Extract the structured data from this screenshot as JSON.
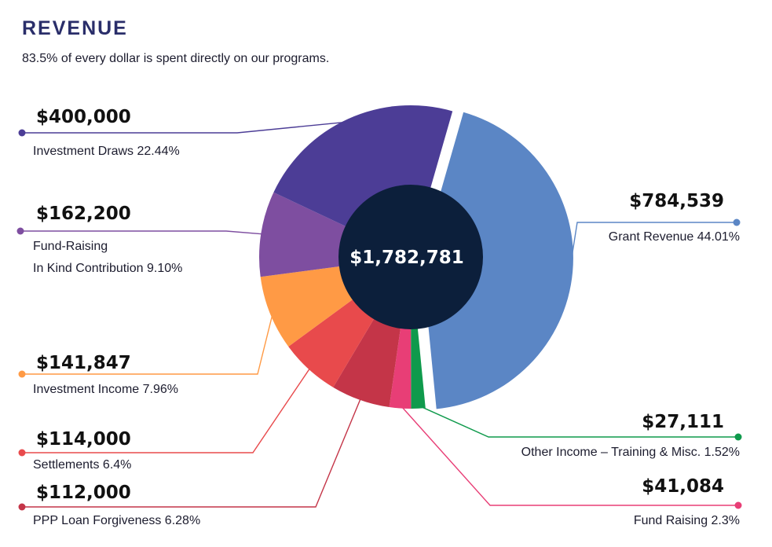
{
  "header": {
    "title": "REVENUE",
    "subtitle": "83.5%  of every dollar is spent directly on our programs."
  },
  "chart_data": {
    "type": "pie",
    "center_label": "$1,782,781",
    "slices": [
      {
        "amount": "$784,539",
        "label": "Grant Revenue 44.01%",
        "percent": 44.01,
        "color": "#5b86c5",
        "exploded": true
      },
      {
        "amount": "$27,111",
        "label": "Other Income – Training & Misc. 1.52%",
        "percent": 1.52,
        "color": "#0f9a4c"
      },
      {
        "amount": "$41,084",
        "label": "Fund Raising 2.3%",
        "percent": 2.3,
        "color": "#e83e76"
      },
      {
        "amount": "$112,000",
        "label": "PPP Loan Forgiveness 6.28%",
        "percent": 6.28,
        "color": "#c43548"
      },
      {
        "amount": "$114,000",
        "label": "Settlements 6.4%",
        "percent": 6.4,
        "color": "#e84a4c"
      },
      {
        "amount": "$141,847",
        "label": "Investment Income 7.96%",
        "percent": 7.96,
        "color": "#ff9a45"
      },
      {
        "amount": "$162,200",
        "label_lines": [
          "Fund-Raising",
          "In Kind Contribution 9.10%"
        ],
        "percent": 9.1,
        "color": "#7e4ea0"
      },
      {
        "amount": "$400,000",
        "label": "Investment Draws 22.44%",
        "percent": 22.44,
        "color": "#4c3d96"
      }
    ]
  }
}
